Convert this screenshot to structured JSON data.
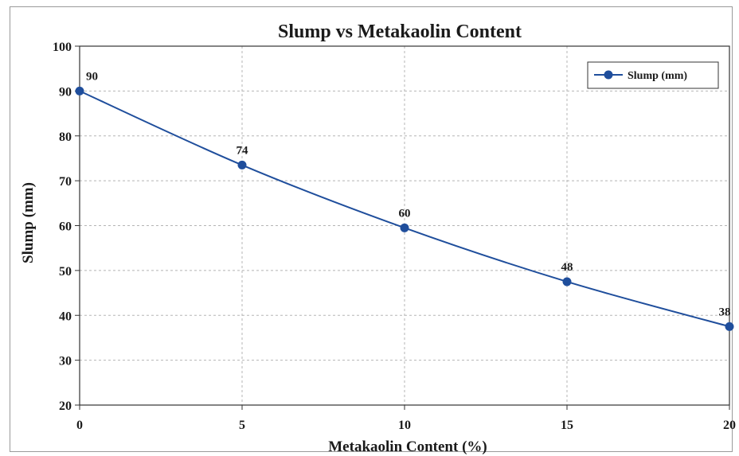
{
  "chart_data": {
    "type": "line",
    "title": "Slump vs Metakaolin Content",
    "xlabel": "Metakaolin Content (%)",
    "ylabel": "Slump (mm)",
    "x": [
      0,
      5,
      10,
      15,
      20
    ],
    "xticks": [
      "0",
      "5",
      "10",
      "15",
      "20"
    ],
    "yticks": [
      "20",
      "30",
      "40",
      "50",
      "60",
      "70",
      "80",
      "90",
      "100"
    ],
    "xlim": [
      0,
      20
    ],
    "ylim": [
      20,
      100
    ],
    "grid": true,
    "legend_position": "top-right",
    "series": [
      {
        "name": "Slump (mm)",
        "values": [
          90,
          73.5,
          59.5,
          47.5,
          37.5
        ],
        "data_labels": [
          "90",
          "74",
          "60",
          "48",
          "38"
        ],
        "color": "#1f4e9c"
      }
    ]
  }
}
